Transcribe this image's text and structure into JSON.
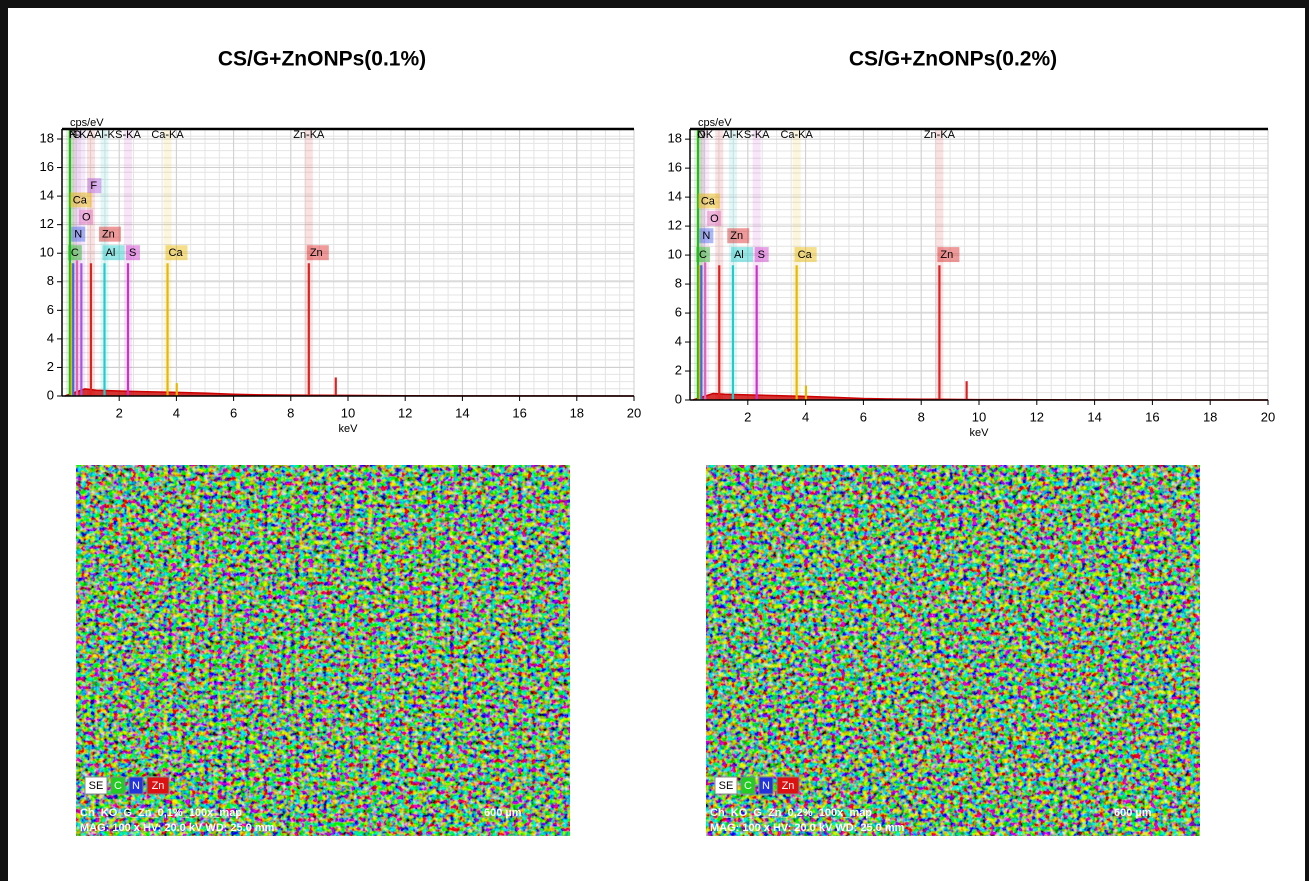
{
  "chart_data": [
    {
      "type": "spectrum",
      "title": "CS/G+ZnONPs(0.1%)",
      "ylabel": "cps/eV",
      "xlabel": "keV",
      "xlim": [
        0,
        20
      ],
      "xticks": [
        2,
        4,
        6,
        8,
        10,
        12,
        14,
        16,
        18,
        20
      ],
      "ylim": [
        0,
        18.7
      ],
      "yticks": [
        0,
        2,
        4,
        6,
        8,
        10,
        12,
        14,
        16,
        18
      ],
      "grid": true,
      "color": "#cc0000",
      "x": [
        0.1,
        0.8,
        1.2,
        2,
        3,
        4,
        5,
        6,
        7,
        8,
        8.5,
        9,
        10,
        12,
        14,
        20
      ],
      "values": [
        0,
        0.5,
        0.4,
        0.35,
        0.3,
        0.25,
        0.2,
        0.12,
        0.08,
        0.06,
        0.05,
        0.05,
        0.04,
        0.02,
        0.01,
        0
      ],
      "peaks": [
        {
          "label": "C",
          "x": 0.277,
          "height": 18.7,
          "color": "#22bb22"
        },
        {
          "label": "Ca",
          "x": 0.341,
          "height": 9.3,
          "color": "#e8b800"
        },
        {
          "label": "N",
          "x": 0.392,
          "height": 9.3,
          "color": "#4466ee",
          "line": "N"
        },
        {
          "label": "O",
          "x": 0.525,
          "height": 9.5,
          "color": "#dd66bb",
          "line": "O"
        },
        {
          "label": "F",
          "x": 0.677,
          "height": 9.3,
          "color": "#aa55dd",
          "line": "F-KA"
        },
        {
          "label": "Zn",
          "x": 1.012,
          "height": 9.3,
          "color": "#dd2222"
        },
        {
          "label": "Al",
          "x": 1.486,
          "height": 9.3,
          "color": "#22cccc",
          "line": "Al-K"
        },
        {
          "label": "S",
          "x": 2.307,
          "height": 9.3,
          "color": "#cc33cc",
          "line": "S-KA"
        },
        {
          "label": "Ca",
          "x": 3.69,
          "height": 9.3,
          "color": "#e8b800",
          "line": "Ca-KA"
        },
        {
          "x": 4.012,
          "height": 0.9,
          "color": "#e8b800"
        },
        {
          "label": "Zn",
          "x": 8.63,
          "height": 9.3,
          "color": "#dd2222",
          "line": "Zn-KA"
        },
        {
          "x": 9.572,
          "height": 1.3,
          "color": "#dd2222"
        }
      ]
    },
    {
      "type": "spectrum",
      "title": "CS/G+ZnONPs(0.2%)",
      "ylabel": "cps/eV",
      "xlabel": "keV",
      "xlim": [
        0,
        20
      ],
      "xticks": [
        2,
        4,
        6,
        8,
        10,
        12,
        14,
        16,
        18,
        20
      ],
      "ylim": [
        0,
        18.7
      ],
      "yticks": [
        0,
        2,
        4,
        6,
        8,
        10,
        12,
        14,
        16,
        18
      ],
      "grid": true,
      "color": "#cc0000",
      "x": [
        0.1,
        0.8,
        1.2,
        2,
        3,
        4,
        5,
        6,
        7,
        8,
        8.5,
        9,
        10,
        12,
        14,
        20
      ],
      "values": [
        0,
        0.45,
        0.4,
        0.35,
        0.3,
        0.25,
        0.18,
        0.1,
        0.07,
        0.05,
        0.05,
        0.04,
        0.03,
        0.02,
        0.01,
        0
      ],
      "peaks": [
        {
          "label": "C",
          "x": 0.277,
          "height": 18.7,
          "color": "#22bb22"
        },
        {
          "label": "Ca",
          "x": 0.341,
          "height": 9.3,
          "color": "#e8b800"
        },
        {
          "label": "N",
          "x": 0.392,
          "height": 9.3,
          "color": "#4466ee",
          "line": "N"
        },
        {
          "label": "O",
          "x": 0.525,
          "height": 9.5,
          "color": "#dd66bb",
          "line": "OK"
        },
        {
          "label": "Zn",
          "x": 1.012,
          "height": 9.3,
          "color": "#dd2222"
        },
        {
          "label": "Al",
          "x": 1.486,
          "height": 9.3,
          "color": "#22cccc",
          "line": "Al-K"
        },
        {
          "label": "S",
          "x": 2.307,
          "height": 9.3,
          "color": "#cc33cc",
          "line": "S-KA"
        },
        {
          "label": "Ca",
          "x": 3.69,
          "height": 9.3,
          "color": "#e8b800",
          "line": "Ca-KA"
        },
        {
          "x": 4.012,
          "height": 1.0,
          "color": "#e8b800"
        },
        {
          "label": "Zn",
          "x": 8.63,
          "height": 9.3,
          "color": "#dd2222",
          "line": "Zn-KA"
        },
        {
          "x": 9.572,
          "height": 1.3,
          "color": "#dd2222"
        }
      ]
    }
  ],
  "maps": [
    {
      "channels": [
        "SE",
        "C",
        "N",
        "Zn"
      ],
      "name": "Ch_KO_G_Zn_0,1%_100x_map",
      "info": "MAG: 100 x HV: 20.0 kV WD: 25.0 mm",
      "scale": "600 µm"
    },
    {
      "channels": [
        "SE",
        "C",
        "N",
        "Zn"
      ],
      "name": "Ch_KO_G_Zn_0,2%_100x_map",
      "info": "MAG: 100 x HV: 20.0 kV WD: 25.0 mm",
      "scale": "600 µm"
    }
  ]
}
